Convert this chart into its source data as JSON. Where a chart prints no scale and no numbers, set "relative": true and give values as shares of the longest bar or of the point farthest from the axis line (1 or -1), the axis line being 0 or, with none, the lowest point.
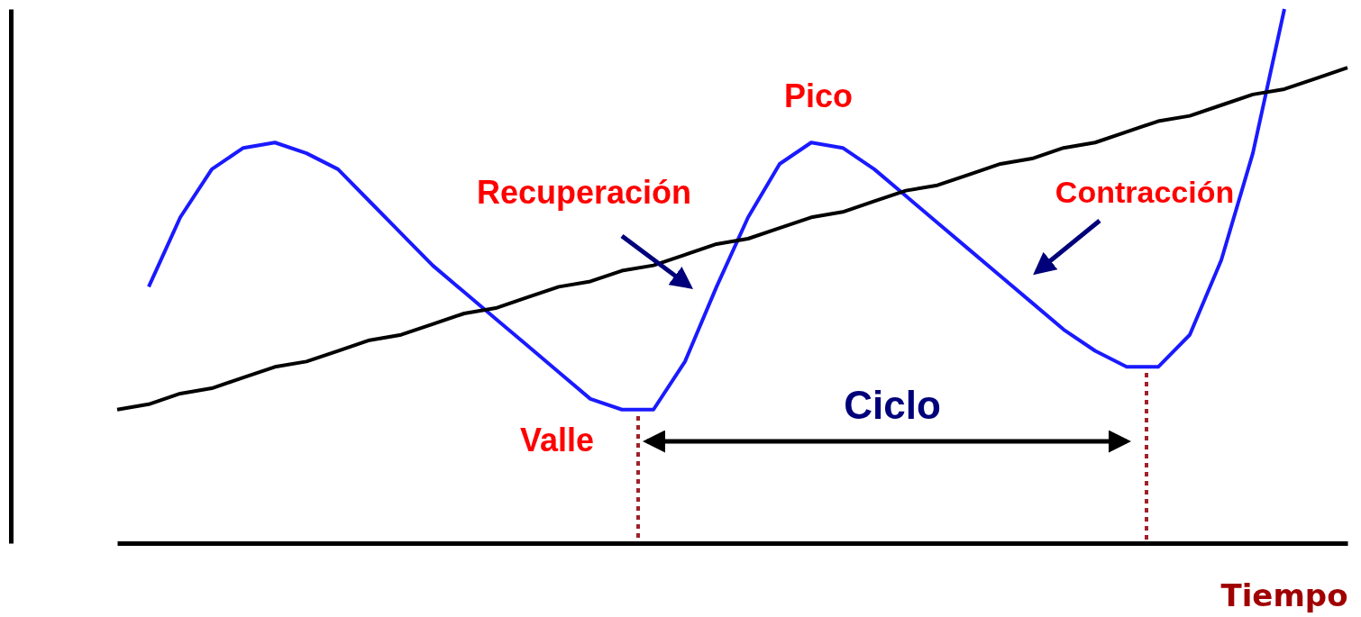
{
  "chart_data": {
    "type": "line",
    "relative": true,
    "xlabel": "Tiempo",
    "categories": [
      null,
      null,
      null,
      null,
      null,
      null,
      null,
      null,
      null,
      null,
      null,
      null,
      null,
      null,
      null,
      null,
      null,
      null,
      null,
      null,
      null,
      null,
      null,
      null,
      null,
      null,
      null,
      null,
      null,
      null,
      null,
      null,
      null,
      null,
      null,
      null,
      null,
      null,
      null,
      null
    ],
    "series": [
      {
        "color": "#1a1aff",
        "values": [
          null,
          0.48,
          0.61,
          0.7,
          0.74,
          0.75,
          0.73,
          0.7,
          0.64,
          0.58,
          0.52,
          0.47,
          0.42,
          0.37,
          0.32,
          0.27,
          0.25,
          0.25,
          0.34,
          0.48,
          0.61,
          0.71,
          0.75,
          0.74,
          0.7,
          0.65,
          0.6,
          0.55,
          0.5,
          0.45,
          0.4,
          0.36,
          0.33,
          0.33,
          0.39,
          0.53,
          0.73,
          1,
          null,
          null
        ]
      },
      {
        "color": "#000000",
        "values": [
          0.25,
          0.26,
          0.28,
          0.29,
          0.31,
          0.33,
          0.34,
          0.36,
          0.38,
          0.39,
          0.41,
          0.43,
          0.44,
          0.46,
          0.48,
          0.49,
          0.51,
          0.52,
          0.54,
          0.56,
          0.57,
          0.59,
          0.61,
          0.62,
          0.64,
          0.66,
          0.67,
          0.69,
          0.71,
          0.72,
          0.74,
          0.75,
          0.77,
          0.79,
          0.8,
          0.82,
          0.84,
          0.85,
          0.87,
          0.89
        ]
      }
    ],
    "annotations": [
      "Pico",
      "Recuperación",
      "Contracción",
      "Valle",
      "Ciclo"
    ],
    "marker": "none",
    "line_style": "solid"
  }
}
